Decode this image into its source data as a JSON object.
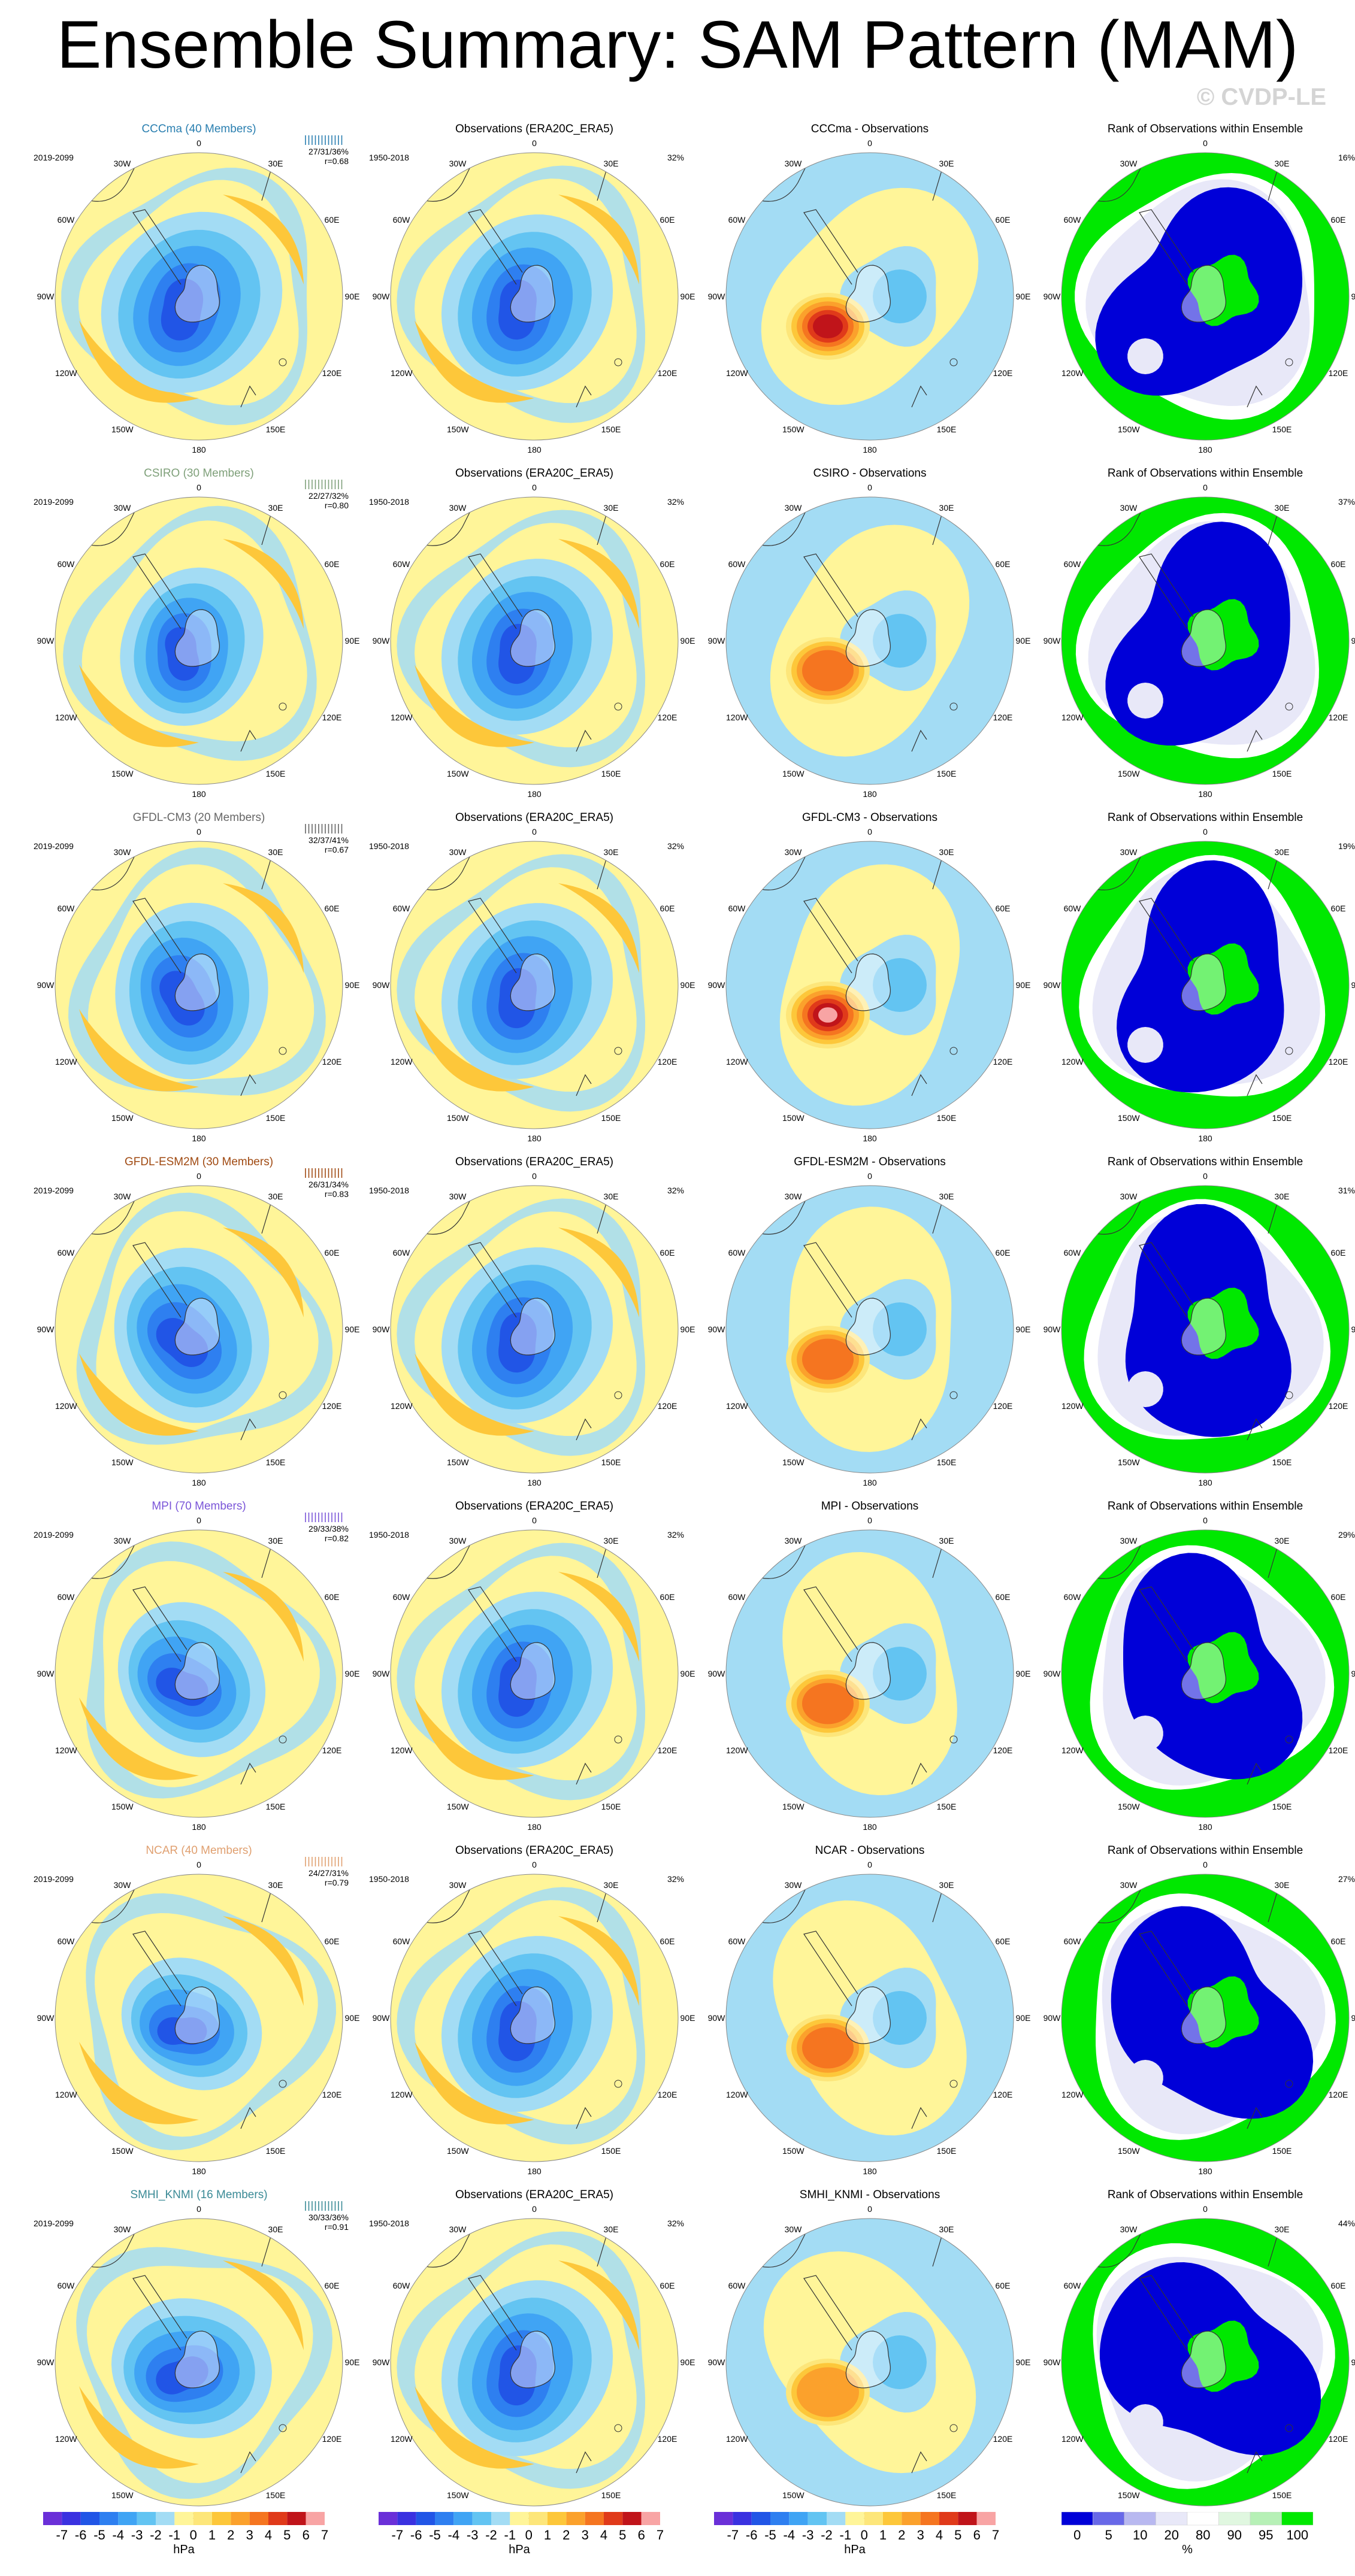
{
  "page": {
    "title": "Ensemble Summary: SAM Pattern (MAM)",
    "watermark": "© CVDP-LE"
  },
  "colors": {
    "land": "#ffffff",
    "border": "#333333",
    "blues": [
      "#6a2fd8",
      "#3a31e0",
      "#2155e6",
      "#2e7ff0",
      "#40a4f4",
      "#63c4f2",
      "#a3dcf4"
    ],
    "reds": [
      "#fff599",
      "#fde67a",
      "#fdc73a",
      "#fba12c",
      "#f57520",
      "#e03a1a",
      "#c0141a",
      "#f8a4a4"
    ],
    "rank": [
      "#0000d8",
      "#6868e8",
      "#b8b8f0",
      "#e8e8f8",
      "#ffffff",
      "#e0f7e0",
      "#b6f0b6",
      "#00e800"
    ]
  },
  "lon_labels": [
    "0",
    "30E",
    "60E",
    "90E",
    "120E",
    "150E",
    "180",
    "150W",
    "120W",
    "90W",
    "60W",
    "30W"
  ],
  "obs_title": "Observations (ERA20C_ERA5)",
  "obs_period": "1950-2018",
  "obs_pct": "32%",
  "model_period": "2019-2099",
  "rank_title": "Rank of Observations within Ensemble",
  "rows": [
    {
      "model": "CCCma (40 Members)",
      "name_color": "#2a7fb0",
      "stats": "27/31/36%",
      "r": "r=0.68",
      "diff": "CCCma - Observations",
      "rank_pct": "16%",
      "diff_max": 6,
      "model_amp": 1.2
    },
    {
      "model": "CSIRO (30 Members)",
      "name_color": "#7fa07a",
      "stats": "22/27/32%",
      "r": "r=0.80",
      "diff": "CSIRO - Observations",
      "rank_pct": "37%",
      "diff_max": 4,
      "model_amp": 1.0
    },
    {
      "model": "GFDL-CM3 (20 Members)",
      "name_color": "#666666",
      "stats": "32/37/41%",
      "r": "r=0.67",
      "diff": "GFDL-CM3 - Observations",
      "rank_pct": "19%",
      "diff_max": 7,
      "model_amp": 1.1
    },
    {
      "model": "GFDL-ESM2M (30 Members)",
      "name_color": "#a04a12",
      "stats": "26/31/34%",
      "r": "r=0.83",
      "diff": "GFDL-ESM2M - Observations",
      "rank_pct": "31%",
      "diff_max": 4,
      "model_amp": 1.1
    },
    {
      "model": "MPI (70 Members)",
      "name_color": "#7a55d8",
      "stats": "29/33/38%",
      "r": "r=0.82",
      "diff": "MPI - Observations",
      "rank_pct": "29%",
      "diff_max": 4,
      "model_amp": 1.0
    },
    {
      "model": "NCAR (40 Members)",
      "name_color": "#e0a070",
      "stats": "24/27/31%",
      "r": "r=0.79",
      "diff": "NCAR - Observations",
      "rank_pct": "27%",
      "diff_max": 4,
      "model_amp": 0.9
    },
    {
      "model": "SMHI_KNMI (16 Members)",
      "name_color": "#3a8a96",
      "stats": "30/33/36%",
      "r": "r=0.91",
      "diff": "SMHI_KNMI - Observations",
      "rank_pct": "44%",
      "diff_max": 3,
      "model_amp": 1.0
    }
  ],
  "colorbars": {
    "hpa_ticks": [
      "-7",
      "-6",
      "-5",
      "-4",
      "-3",
      "-2",
      "-1",
      "0",
      "1",
      "2",
      "3",
      "4",
      "5",
      "6",
      "7"
    ],
    "hpa_unit": "hPa",
    "rank_ticks": [
      "0",
      "5",
      "10",
      "20",
      "80",
      "90",
      "95",
      "100"
    ],
    "rank_unit": "%"
  }
}
